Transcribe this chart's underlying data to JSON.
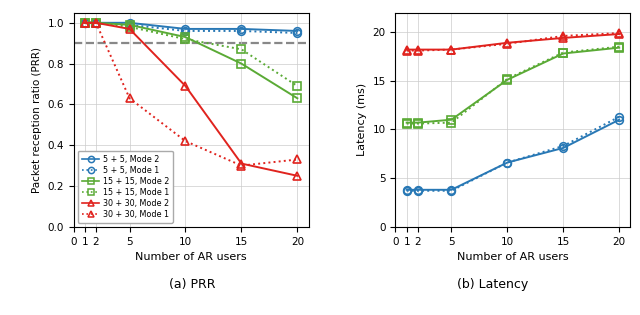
{
  "x_prr": [
    1,
    2,
    5,
    10,
    15,
    20
  ],
  "prr_5_mode2": [
    1.0,
    1.0,
    1.0,
    0.97,
    0.97,
    0.96
  ],
  "prr_5_mode1": [
    1.0,
    1.0,
    0.99,
    0.96,
    0.96,
    0.95
  ],
  "prr_15_mode2": [
    1.0,
    1.0,
    0.99,
    0.93,
    0.8,
    0.63
  ],
  "prr_15_mode1": [
    1.0,
    1.0,
    0.98,
    0.92,
    0.87,
    0.69
  ],
  "prr_30_mode2": [
    1.0,
    1.0,
    0.97,
    0.69,
    0.31,
    0.25
  ],
  "prr_30_mode1": [
    1.0,
    1.0,
    0.63,
    0.42,
    0.3,
    0.33
  ],
  "x_lat": [
    1,
    2,
    5,
    10,
    15,
    20
  ],
  "lat_5_mode2": [
    3.8,
    3.8,
    3.8,
    6.6,
    8.1,
    11.0
  ],
  "lat_5_mode1": [
    3.7,
    3.7,
    3.7,
    6.6,
    8.3,
    11.3
  ],
  "lat_15_mode2": [
    10.7,
    10.7,
    11.0,
    15.1,
    17.8,
    18.4
  ],
  "lat_15_mode1": [
    10.6,
    10.6,
    10.7,
    15.2,
    17.9,
    18.5
  ],
  "lat_30_mode2": [
    18.2,
    18.2,
    18.2,
    18.9,
    19.4,
    19.8
  ],
  "lat_30_mode1": [
    18.1,
    18.1,
    18.2,
    18.8,
    19.6,
    19.9
  ],
  "color_blue": "#2878b5",
  "color_green": "#5aaa35",
  "color_red": "#e0231e",
  "dashed_gray": "#888888",
  "ylabel_prr": "Packet reception ratio (PRR)",
  "ylabel_lat": "Latency (ms)",
  "xlabel": "Number of AR users",
  "caption_a": "(a) PRR",
  "caption_b": "(b) Latency",
  "ylim_prr": [
    0,
    1.05
  ],
  "ylim_lat": [
    0,
    22
  ],
  "yticks_prr": [
    0,
    0.2,
    0.4,
    0.6,
    0.8,
    1.0
  ],
  "yticks_lat": [
    0,
    5,
    10,
    15,
    20
  ],
  "xticks": [
    0,
    1,
    2,
    5,
    10,
    15,
    20
  ]
}
